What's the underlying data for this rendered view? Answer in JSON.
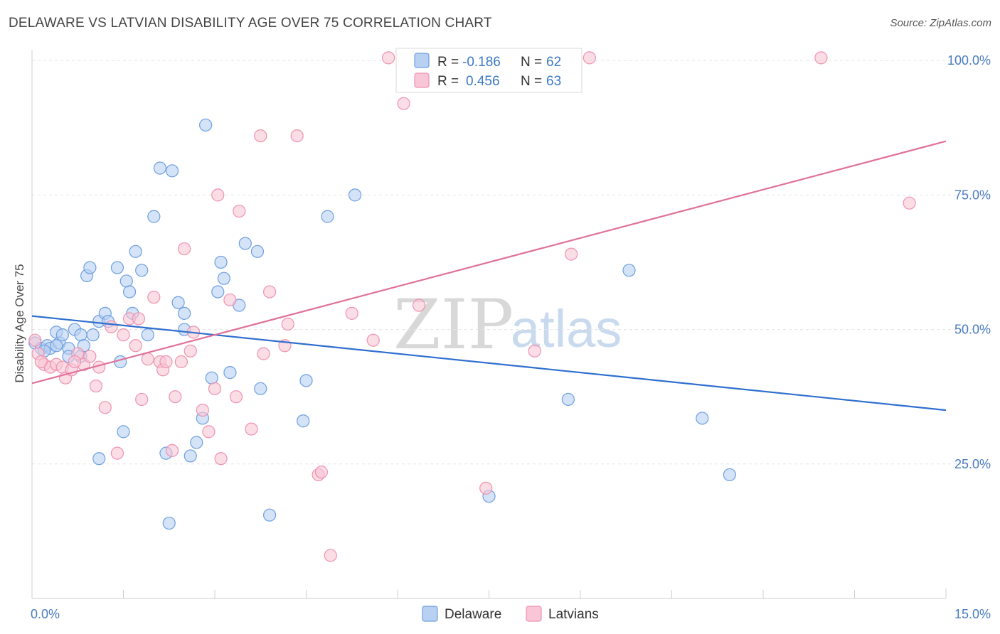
{
  "title": "DELAWARE VS LATVIAN DISABILITY AGE OVER 75 CORRELATION CHART",
  "source": "Source: ZipAtlas.com",
  "watermark": {
    "zip": "ZIP",
    "atlas": "atlas"
  },
  "colors": {
    "delaware_fill": "#b8d0f2",
    "delaware_stroke": "#6e9fe0",
    "delaware_line": "#2f6fcf",
    "latvians_fill": "#f8c6d6",
    "latvians_stroke": "#ee92b0",
    "latvians_line": "#e0719a"
  },
  "legend": {
    "rows": [
      {
        "r_label": "R =",
        "r_value": "-0.186",
        "n_label": "N =",
        "n_value": "62"
      },
      {
        "r_label": "R =",
        "r_value": "0.456",
        "n_label": "N =",
        "n_value": "63"
      }
    ]
  },
  "chart_data": {
    "type": "scatter",
    "title": "DELAWARE VS LATVIAN DISABILITY AGE OVER 75 CORRELATION CHART",
    "xlabel": "",
    "ylabel": "Disability Age Over 75",
    "xlim": [
      0,
      15
    ],
    "ylim": [
      0,
      102
    ],
    "x_tick_labels": [
      "0.0%",
      "15.0%"
    ],
    "y_ticks": [
      25,
      50,
      75,
      100
    ],
    "y_tick_labels": [
      "25.0%",
      "50.0%",
      "75.0%",
      "100.0%"
    ],
    "grid": "horizontal dashed",
    "legend_position": "top-center",
    "series": [
      {
        "name": "Delaware",
        "r": -0.186,
        "n": 62,
        "trend": {
          "x": [
            0,
            15
          ],
          "y": [
            52.5,
            35.0
          ]
        },
        "points": [
          [
            0.05,
            47.5
          ],
          [
            0.15,
            46.5
          ],
          [
            0.25,
            47.0
          ],
          [
            0.3,
            46.5
          ],
          [
            0.4,
            49.5
          ],
          [
            0.45,
            47.5
          ],
          [
            0.5,
            49.0
          ],
          [
            0.6,
            46.5
          ],
          [
            0.6,
            45.0
          ],
          [
            0.7,
            50.0
          ],
          [
            0.8,
            45.0
          ],
          [
            0.8,
            49.0
          ],
          [
            0.85,
            47.0
          ],
          [
            0.9,
            60.0
          ],
          [
            0.95,
            61.5
          ],
          [
            1.0,
            49.0
          ],
          [
            1.1,
            51.5
          ],
          [
            1.2,
            53.0
          ],
          [
            1.25,
            51.5
          ],
          [
            1.4,
            61.5
          ],
          [
            1.45,
            44.0
          ],
          [
            1.5,
            31.0
          ],
          [
            1.55,
            59.0
          ],
          [
            1.6,
            57.0
          ],
          [
            1.65,
            53.0
          ],
          [
            1.7,
            64.5
          ],
          [
            1.8,
            61.0
          ],
          [
            1.9,
            49.0
          ],
          [
            2.0,
            71.0
          ],
          [
            2.1,
            80.0
          ],
          [
            2.2,
            27.0
          ],
          [
            2.25,
            14.0
          ],
          [
            2.3,
            79.5
          ],
          [
            2.4,
            55.0
          ],
          [
            2.5,
            53.0
          ],
          [
            2.5,
            50.0
          ],
          [
            2.6,
            26.5
          ],
          [
            2.7,
            29.0
          ],
          [
            2.8,
            33.5
          ],
          [
            2.85,
            88.0
          ],
          [
            2.95,
            41.0
          ],
          [
            3.05,
            57.0
          ],
          [
            3.1,
            62.5
          ],
          [
            3.15,
            59.5
          ],
          [
            3.25,
            42.0
          ],
          [
            3.4,
            54.5
          ],
          [
            3.5,
            66.0
          ],
          [
            3.7,
            64.5
          ],
          [
            3.75,
            39.0
          ],
          [
            3.9,
            15.5
          ],
          [
            4.45,
            33.0
          ],
          [
            4.5,
            40.5
          ],
          [
            4.85,
            71.0
          ],
          [
            5.3,
            75.0
          ],
          [
            7.5,
            19.0
          ],
          [
            8.8,
            37.0
          ],
          [
            9.8,
            61.0
          ],
          [
            11.0,
            33.5
          ],
          [
            11.45,
            23.0
          ],
          [
            1.1,
            26.0
          ],
          [
            0.4,
            47.0
          ],
          [
            0.2,
            46.0
          ]
        ]
      },
      {
        "name": "Latvians",
        "r": 0.456,
        "n": 63,
        "trend": {
          "x": [
            0,
            15
          ],
          "y": [
            40.0,
            85.0
          ]
        },
        "points": [
          [
            0.05,
            48.0
          ],
          [
            0.1,
            45.5
          ],
          [
            0.2,
            43.5
          ],
          [
            0.3,
            43.0
          ],
          [
            0.4,
            43.5
          ],
          [
            0.5,
            43.0
          ],
          [
            0.55,
            41.0
          ],
          [
            0.65,
            42.5
          ],
          [
            0.75,
            45.5
          ],
          [
            0.85,
            43.5
          ],
          [
            0.95,
            45.0
          ],
          [
            1.05,
            39.5
          ],
          [
            1.1,
            43.0
          ],
          [
            1.2,
            35.5
          ],
          [
            1.3,
            50.5
          ],
          [
            1.4,
            27.0
          ],
          [
            1.5,
            49.0
          ],
          [
            1.6,
            52.0
          ],
          [
            1.7,
            47.0
          ],
          [
            1.75,
            52.0
          ],
          [
            1.8,
            37.0
          ],
          [
            1.9,
            44.5
          ],
          [
            2.0,
            56.0
          ],
          [
            2.1,
            44.0
          ],
          [
            2.15,
            42.5
          ],
          [
            2.2,
            44.0
          ],
          [
            2.3,
            27.5
          ],
          [
            2.35,
            37.5
          ],
          [
            2.45,
            44.0
          ],
          [
            2.5,
            65.0
          ],
          [
            2.6,
            46.0
          ],
          [
            2.65,
            49.5
          ],
          [
            2.8,
            35.0
          ],
          [
            2.9,
            31.0
          ],
          [
            3.0,
            39.0
          ],
          [
            3.05,
            75.0
          ],
          [
            3.1,
            26.0
          ],
          [
            3.25,
            55.5
          ],
          [
            3.35,
            37.5
          ],
          [
            3.4,
            72.0
          ],
          [
            3.6,
            31.5
          ],
          [
            3.75,
            86.0
          ],
          [
            3.8,
            45.5
          ],
          [
            3.9,
            57.0
          ],
          [
            4.15,
            47.0
          ],
          [
            4.2,
            51.0
          ],
          [
            4.35,
            86.0
          ],
          [
            4.7,
            23.0
          ],
          [
            4.75,
            23.5
          ],
          [
            4.9,
            8.0
          ],
          [
            5.25,
            53.0
          ],
          [
            5.6,
            48.0
          ],
          [
            5.85,
            100.5
          ],
          [
            6.1,
            92.0
          ],
          [
            6.35,
            54.5
          ],
          [
            7.45,
            20.5
          ],
          [
            8.25,
            46.0
          ],
          [
            8.85,
            64.0
          ],
          [
            9.15,
            100.5
          ],
          [
            12.95,
            100.5
          ],
          [
            14.4,
            73.5
          ],
          [
            0.15,
            44.0
          ],
          [
            0.7,
            44.0
          ]
        ]
      }
    ]
  },
  "bottom_legend": {
    "items": [
      {
        "label": "Delaware"
      },
      {
        "label": "Latvians"
      }
    ]
  }
}
